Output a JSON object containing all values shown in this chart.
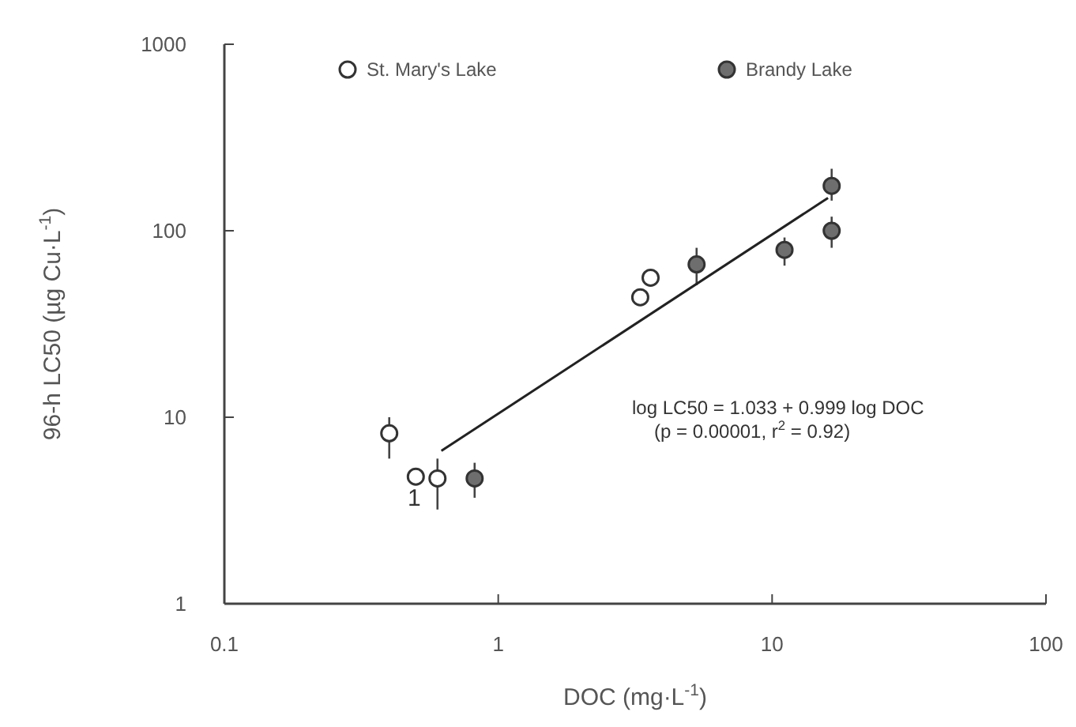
{
  "chart_data": {
    "type": "scatter",
    "xlabel": "DOC (mg·L$^{-1}$)",
    "ylabel": "96-h LC50 (µg Cu·L$^{-1}$)",
    "log": "xy",
    "xlim": [
      0.1,
      100
    ],
    "ylim": [
      1,
      1000
    ],
    "xticks": [
      0.1,
      1,
      10,
      100
    ],
    "yticks": [
      1,
      10,
      100,
      1000
    ],
    "legend": "top",
    "grid": false,
    "marker": "circle",
    "series": [
      {
        "name": "St. Mary's Lake",
        "color": "#ffffff",
        "x": [
          0.4,
          0.5,
          0.6,
          3.3,
          3.6
        ],
        "values": [
          8.2,
          4.8,
          4.7,
          44,
          56
        ],
        "errors": [
          [
            6,
            10
          ],
          null,
          [
            3.2,
            6
          ],
          null,
          null
        ]
      },
      {
        "name": "Brandy Lake",
        "color": "#6e6e6e",
        "x": [
          0.82,
          5.3,
          11.1,
          16.5,
          16.5
        ],
        "values": [
          4.7,
          66,
          79,
          100,
          174
        ],
        "errors": [
          [
            3.7,
            5.7
          ],
          [
            51,
            81
          ],
          [
            65,
            92
          ],
          [
            81,
            119
          ],
          [
            145,
            215
          ]
        ]
      },
      {
        "type": "line",
        "marker": "none",
        "color": "#222222",
        "x": [
          0.62,
          16
        ],
        "values": [
          6.6,
          150
        ]
      }
    ],
    "annotations": [
      "1",
      "log LC50 = 1.033 + 0.999 log DOC",
      "(p = 0.00001, r$^{2}$ = 0.92)"
    ]
  }
}
